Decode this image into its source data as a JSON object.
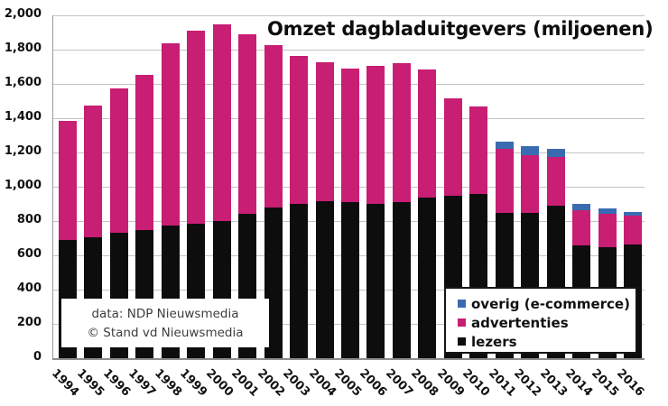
{
  "title": "Omzet dagbladuitgevers (miljoenen)",
  "annotation": {
    "line1": "data: NDP Nieuwsmedia",
    "line2": "© Stand vd Nieuwsmedia"
  },
  "legend": {
    "items": [
      {
        "label": "overig (e-commerce)",
        "color": "#3a6bb0"
      },
      {
        "label": "advertenties",
        "color": "#c81e73"
      },
      {
        "label": "lezers",
        "color": "#0d0d0d"
      }
    ]
  },
  "colors": {
    "background": "#ffffff",
    "gridline": "#c4c4c4",
    "axis": "#8c8c8c",
    "pink": "#c81e73",
    "blue": "#3a6bb0",
    "black": "#0d0d0d"
  },
  "chart_data": {
    "type": "bar",
    "stacked": true,
    "title": "Omzet dagbladuitgevers (miljoenen)",
    "xlabel": "",
    "ylabel": "",
    "ylim": [
      0,
      2000
    ],
    "grid": true,
    "legend_position": "inside-bottom-right",
    "categories": [
      "1994",
      "1995",
      "1996",
      "1997",
      "1998",
      "1999",
      "2000",
      "2001",
      "2002",
      "2003",
      "2004",
      "2005",
      "2006",
      "2007",
      "2008",
      "2009",
      "2010",
      "2011",
      "2012",
      "2013",
      "2014",
      "2015",
      "2016"
    ],
    "series": [
      {
        "name": "lezers",
        "color": "#0d0d0d",
        "values": [
          690,
          705,
          730,
          745,
          775,
          785,
          800,
          840,
          880,
          900,
          915,
          910,
          900,
          910,
          935,
          950,
          960,
          850,
          850,
          890,
          660,
          650,
          665
        ]
      },
      {
        "name": "advertenties",
        "color": "#c81e73",
        "values": [
          695,
          770,
          845,
          910,
          1060,
          1125,
          1150,
          1050,
          945,
          865,
          810,
          780,
          805,
          810,
          750,
          565,
          510,
          370,
          335,
          285,
          205,
          190,
          165
        ]
      },
      {
        "name": "overig (e-commerce)",
        "color": "#3a6bb0",
        "values": [
          0,
          0,
          0,
          0,
          0,
          0,
          0,
          0,
          0,
          0,
          0,
          0,
          0,
          0,
          0,
          0,
          0,
          45,
          50,
          45,
          35,
          35,
          25
        ]
      }
    ],
    "totals": [
      1385,
      1475,
      1575,
      1655,
      1835,
      1910,
      1950,
      1890,
      1825,
      1765,
      1725,
      1690,
      1705,
      1720,
      1685,
      1515,
      1470,
      1265,
      1235,
      1220,
      900,
      875,
      855
    ],
    "yticks": [
      {
        "value": 0,
        "label": "0"
      },
      {
        "value": 200,
        "label": "200"
      },
      {
        "value": 400,
        "label": "400"
      },
      {
        "value": 600,
        "label": "600"
      },
      {
        "value": 800,
        "label": "800"
      },
      {
        "value": 1000,
        "label": "1,000"
      },
      {
        "value": 1200,
        "label": "1,200"
      },
      {
        "value": 1400,
        "label": "1,400"
      },
      {
        "value": 1600,
        "label": "1,600"
      },
      {
        "value": 1800,
        "label": "1,800"
      },
      {
        "value": 2000,
        "label": "2,000"
      }
    ]
  }
}
